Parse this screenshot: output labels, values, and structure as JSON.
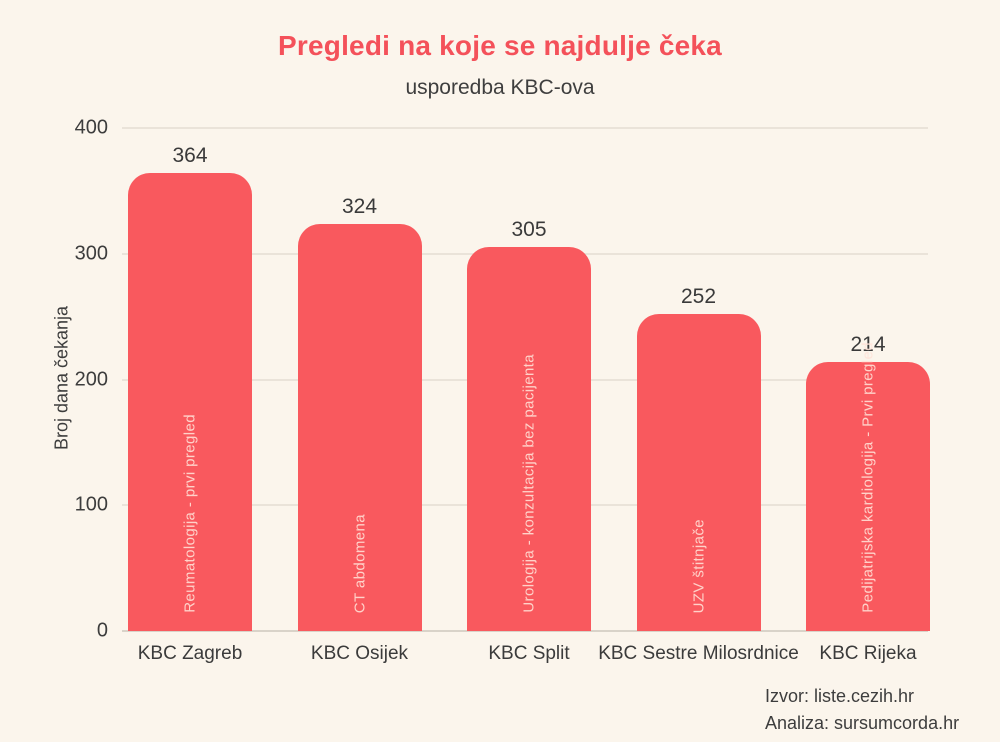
{
  "page": {
    "title": "Pregledi na koje se najdulje čeka",
    "subtitle": "usporedba KBC-ova"
  },
  "footer": {
    "source": "Izvor: liste.cezih.hr",
    "analysis": "Analiza: sursumcorda.hr"
  },
  "colors": {
    "background": "#FBF5EC",
    "title": "#F4515A",
    "bar": "#F9595E",
    "text": "#3C3C3C",
    "gridline": "#EAE3D9",
    "baseline": "#D9D3C9",
    "bar_annotation_text": "#FFE2D8"
  },
  "chart_data": {
    "type": "bar",
    "title": "Pregledi na koje se najdulje čeka",
    "subtitle": "usporedba KBC-ova",
    "xlabel": "",
    "ylabel": "Broj dana čekanja",
    "ylim": [
      0,
      400
    ],
    "yticks": [
      0,
      100,
      200,
      300,
      400
    ],
    "grid": true,
    "legend": false,
    "categories": [
      "KBC Zagreb",
      "KBC Osijek",
      "KBC Split",
      "KBC Sestre Milosrdnice",
      "KBC Rijeka"
    ],
    "values": [
      364,
      324,
      305,
      252,
      214
    ],
    "bar_annotations": [
      "Reumatologija - prvi pregled",
      "CT abdomena",
      "Urologija - konzultacija bez pacijenta",
      "UZV štitnjače",
      "Pedijatrijska kardiologija - Prvi pregled"
    ]
  }
}
